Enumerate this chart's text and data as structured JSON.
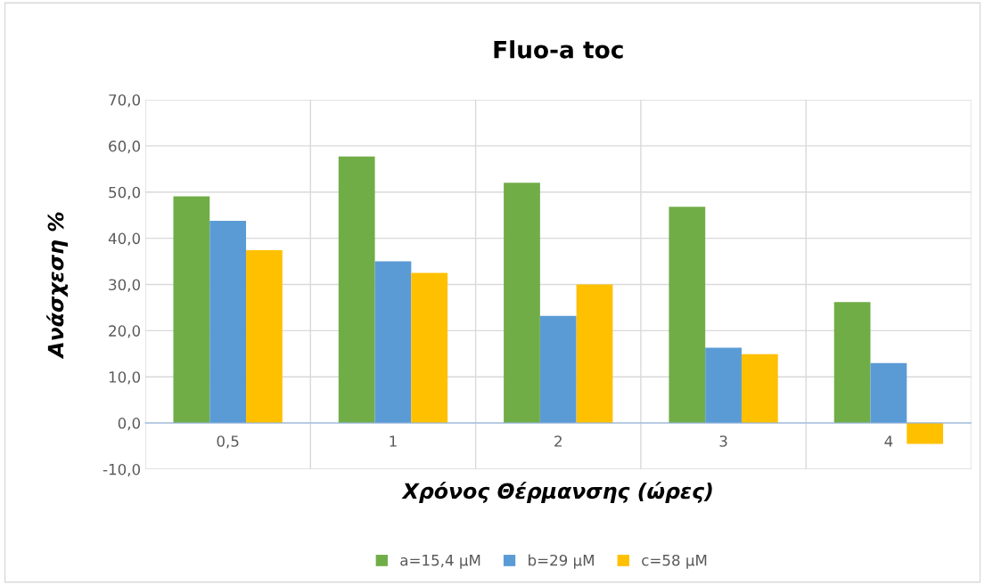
{
  "chart_data": {
    "type": "bar",
    "title": "Fluo-a toc",
    "xlabel": "Χρόνος Θέρμανσης (ώρες)",
    "ylabel": "Ανάσχεση %",
    "categories": [
      "0,5",
      "1",
      "2",
      "3",
      "4"
    ],
    "series": [
      {
        "name": "a=15,4 μM",
        "color": "#70ad47",
        "values": [
          49.1,
          57.7,
          52.0,
          46.8,
          26.2
        ]
      },
      {
        "name": "b=29 μM",
        "color": "#5b9bd5",
        "values": [
          43.8,
          35.0,
          23.2,
          16.3,
          13.0
        ]
      },
      {
        "name": "c=58 μM",
        "color": "#ffc000",
        "values": [
          37.4,
          32.5,
          30.0,
          14.9,
          -4.5
        ]
      }
    ],
    "ylim": [
      -10,
      70
    ],
    "yticks": [
      {
        "value": -10,
        "label": "-10,0"
      },
      {
        "value": 0,
        "label": "0,0"
      },
      {
        "value": 10,
        "label": "10,0"
      },
      {
        "value": 20,
        "label": "20,0"
      },
      {
        "value": 30,
        "label": "30,0"
      },
      {
        "value": 40,
        "label": "40,0"
      },
      {
        "value": 50,
        "label": "50,0"
      },
      {
        "value": 60,
        "label": "60,0"
      },
      {
        "value": 70,
        "label": "70,0"
      }
    ],
    "grid": true,
    "legend": "bottom"
  }
}
